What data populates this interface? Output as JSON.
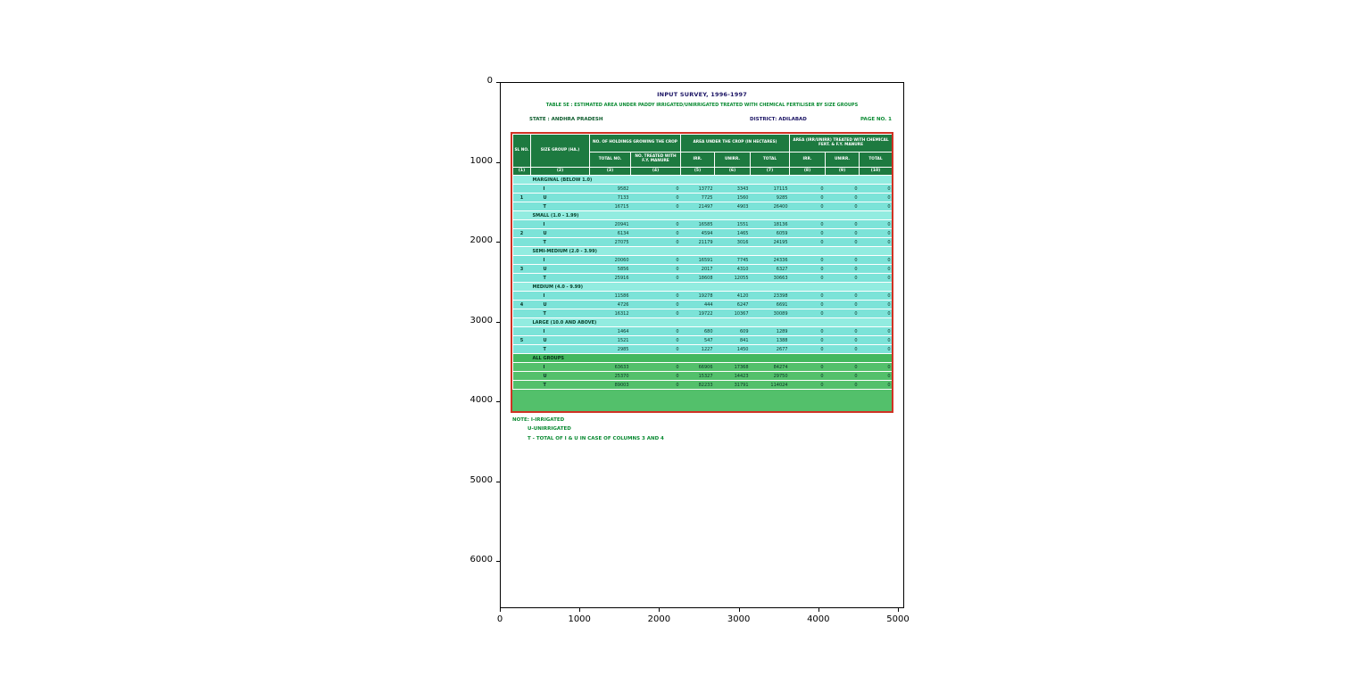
{
  "figure": {
    "x_ticks": [
      "0",
      "1000",
      "2000",
      "3000",
      "4000",
      "5000"
    ],
    "y_ticks": [
      "0",
      "1000",
      "2000",
      "3000",
      "4000",
      "5000",
      "6000"
    ]
  },
  "document": {
    "title": "INPUT SURVEY, 1996-1997",
    "subtitle": "TABLE 5E : ESTIMATED AREA UNDER PADDY IRRIGATED/UNIRRIGATED TREATED WITH CHEMICAL FERTILISER BY SIZE GROUPS",
    "state": "STATE : ANDHRA PRADESH",
    "district": "DISTRICT: ADILABAD",
    "page": "PAGE NO. 1",
    "notes": [
      "NOTE: I-IRRIGATED",
      "U-UNIRRIGATED",
      "T - TOTAL OF I & U IN CASE OF COLUMNS 3 AND 4"
    ],
    "colors": {
      "header_green": "#1d7a40",
      "row_teal": "#7ce3d8",
      "label_teal": "#92ece0",
      "highlight_green": "#53c06b",
      "highlight_label_green": "#43b85e",
      "border_red": "#d03224",
      "title_navy": "#1b1464",
      "note_green": "#0a8a32"
    }
  },
  "table": {
    "header": {
      "sl_no": "SL NO.",
      "size_group": "SIZE GROUP (HA.)",
      "holdings_group": "NO. OF HOLDINGS GROWING THE CROP",
      "holdings_sub": [
        "TOTAL NO.",
        "NO. TREATED WITH F.Y. MANURE"
      ],
      "area_group": "AREA UNDER THE CROP (IN HECTARES)",
      "area_sub": [
        "IRR.",
        "UNIRR.",
        "TOTAL"
      ],
      "treated_group": "AREA (IRR/UNIRR) TREATED WITH CHEMICAL FERT. & F.Y. MANURE",
      "treated_sub": [
        "IRR.",
        "UNIRR.",
        "TOTAL"
      ],
      "col_numbers": [
        "(1)",
        "(2)",
        "(3)",
        "(4)",
        "(5)",
        "(6)",
        "(7)",
        "(8)",
        "(9)",
        "(10)"
      ]
    },
    "groups": [
      {
        "sl_no": "1",
        "label": "MARGINAL (BELOW 1.0)",
        "highlight": false,
        "rows": [
          {
            "iut": "I",
            "cells": [
              "9582",
              "0",
              "13772",
              "3343",
              "17115",
              "0",
              "0",
              "0"
            ]
          },
          {
            "iut": "U",
            "cells": [
              "7133",
              "0",
              "7725",
              "1560",
              "9285",
              "0",
              "0",
              "0"
            ]
          },
          {
            "iut": "T",
            "cells": [
              "16715",
              "0",
              "21497",
              "4903",
              "26400",
              "0",
              "0",
              "0"
            ]
          }
        ]
      },
      {
        "sl_no": "2",
        "label": "SMALL (1.0 - 1.99)",
        "highlight": false,
        "rows": [
          {
            "iut": "I",
            "cells": [
              "20941",
              "0",
              "16585",
              "1551",
              "18136",
              "0",
              "0",
              "0"
            ]
          },
          {
            "iut": "U",
            "cells": [
              "6134",
              "0",
              "4594",
              "1465",
              "6059",
              "0",
              "0",
              "0"
            ]
          },
          {
            "iut": "T",
            "cells": [
              "27075",
              "0",
              "21179",
              "3016",
              "24195",
              "0",
              "0",
              "0"
            ]
          }
        ]
      },
      {
        "sl_no": "3",
        "label": "SEMI-MEDIUM (2.0 - 3.99)",
        "highlight": false,
        "rows": [
          {
            "iut": "I",
            "cells": [
              "20060",
              "0",
              "16591",
              "7745",
              "24336",
              "0",
              "0",
              "0"
            ]
          },
          {
            "iut": "U",
            "cells": [
              "5856",
              "0",
              "2017",
              "4310",
              "6327",
              "0",
              "0",
              "0"
            ]
          },
          {
            "iut": "T",
            "cells": [
              "25916",
              "0",
              "18608",
              "12055",
              "30663",
              "0",
              "0",
              "0"
            ]
          }
        ]
      },
      {
        "sl_no": "4",
        "label": "MEDIUM (4.0 - 9.99)",
        "highlight": false,
        "rows": [
          {
            "iut": "I",
            "cells": [
              "11586",
              "0",
              "19278",
              "4120",
              "23398",
              "0",
              "0",
              "0"
            ]
          },
          {
            "iut": "U",
            "cells": [
              "4726",
              "0",
              "444",
              "6247",
              "6691",
              "0",
              "0",
              "0"
            ]
          },
          {
            "iut": "T",
            "cells": [
              "16312",
              "0",
              "19722",
              "10367",
              "30089",
              "0",
              "0",
              "0"
            ]
          }
        ]
      },
      {
        "sl_no": "5",
        "label": "LARGE (10.0 AND ABOVE)",
        "highlight": false,
        "rows": [
          {
            "iut": "I",
            "cells": [
              "1464",
              "0",
              "680",
              "609",
              "1289",
              "0",
              "0",
              "0"
            ]
          },
          {
            "iut": "U",
            "cells": [
              "1521",
              "0",
              "547",
              "841",
              "1388",
              "0",
              "0",
              "0"
            ]
          },
          {
            "iut": "T",
            "cells": [
              "2985",
              "0",
              "1227",
              "1450",
              "2677",
              "0",
              "0",
              "0"
            ]
          }
        ]
      },
      {
        "sl_no": "",
        "label": "ALL GROUPS",
        "highlight": true,
        "rows": [
          {
            "iut": "I",
            "cells": [
              "63633",
              "0",
              "66906",
              "17368",
              "84274",
              "0",
              "0",
              "0"
            ]
          },
          {
            "iut": "U",
            "cells": [
              "25370",
              "0",
              "15327",
              "14423",
              "29750",
              "0",
              "0",
              "0"
            ]
          },
          {
            "iut": "T",
            "cells": [
              "89003",
              "0",
              "82233",
              "31791",
              "114024",
              "0",
              "0",
              "0"
            ]
          }
        ]
      }
    ]
  }
}
